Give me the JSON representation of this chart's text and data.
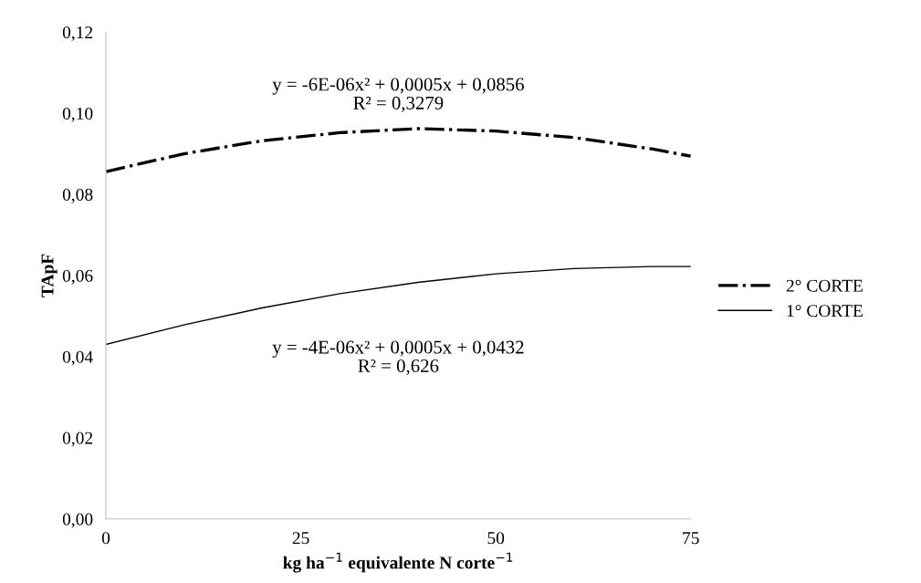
{
  "chart_data": {
    "type": "line",
    "xlabel": "kg ha$^{−1}$ equivalente N corte$^{−1}$",
    "ylabel": "TApF",
    "xlim": [
      0,
      75
    ],
    "xticks": [
      0,
      25,
      50,
      75
    ],
    "ylim": [
      0,
      0.12
    ],
    "yticks": [
      {
        "value": 0,
        "label": "0,00"
      },
      {
        "value": 0.02,
        "label": "0,02"
      },
      {
        "value": 0.04,
        "label": "0,04"
      },
      {
        "value": 0.06,
        "label": "0,06"
      },
      {
        "value": 0.08,
        "label": "0,08"
      },
      {
        "value": 0.1,
        "label": "0,10"
      },
      {
        "value": 0.12,
        "label": "0,12"
      }
    ],
    "x": [
      0,
      10,
      20,
      30,
      40,
      50,
      60,
      70,
      75
    ],
    "series": [
      {
        "name": "2° CORTE",
        "color": "#000000",
        "line_style": "dashdot",
        "values": [
          0.0856,
          0.09,
          0.0932,
          0.0952,
          0.0962,
          0.0956,
          0.094,
          0.0912,
          0.0894
        ]
      },
      {
        "name": "1° CORTE",
        "color": "#000000",
        "line_style": "solid",
        "values": [
          0.043,
          0.0478,
          0.052,
          0.0555,
          0.0583,
          0.0604,
          0.0617,
          0.0622,
          0.0622
        ]
      }
    ],
    "annotations": [
      "y = -6E-06x² + 0,0005x + 0,0856\nR² = 0,3279",
      "y = -4E-06x² + 0,0005x + 0,0432\nR² = 0,626"
    ],
    "legend": "right",
    "grid": false,
    "marker": "none"
  }
}
